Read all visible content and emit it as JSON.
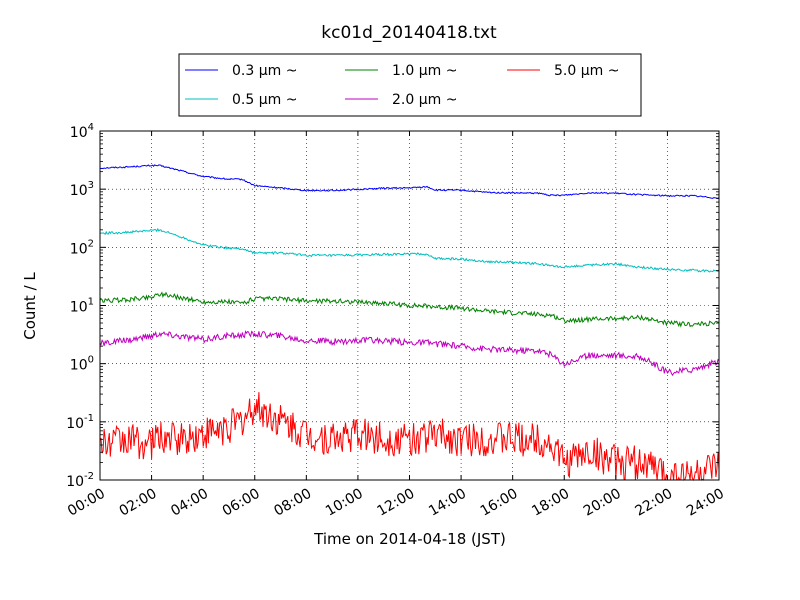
{
  "chart_data": {
    "type": "line",
    "title": "kc01d_20140418.txt",
    "xlabel": "Time on 2014-04-18 (JST)",
    "ylabel": "Count / L",
    "yscale": "log",
    "ylim": [
      0.01,
      10000
    ],
    "xlim": [
      0,
      24
    ],
    "grid": true,
    "legend_position": "top-center",
    "x_tick_labels": [
      "00:00",
      "02:00",
      "04:00",
      "06:00",
      "08:00",
      "10:00",
      "12:00",
      "14:00",
      "16:00",
      "18:00",
      "20:00",
      "22:00",
      "24:00"
    ],
    "y_ticks": [
      {
        "base": "10",
        "exp": "-2",
        "value": 0.01
      },
      {
        "base": "10",
        "exp": "-1",
        "value": 0.1
      },
      {
        "base": "10",
        "exp": "0",
        "value": 1
      },
      {
        "base": "10",
        "exp": "1",
        "value": 10
      },
      {
        "base": "10",
        "exp": "2",
        "value": 100
      },
      {
        "base": "10",
        "exp": "3",
        "value": 1000
      },
      {
        "base": "10",
        "exp": "4",
        "value": 10000
      }
    ],
    "x": [
      0,
      1,
      2,
      2.3,
      3,
      4,
      5,
      5.5,
      6,
      7,
      8,
      9,
      10,
      11,
      12,
      12.7,
      13,
      14,
      15,
      16,
      17,
      17.5,
      18,
      19,
      20,
      21,
      22,
      23,
      24
    ],
    "series": [
      {
        "name": "0.3 μm ~",
        "color": "#0000ff",
        "values": [
          2300,
          2400,
          2550,
          2550,
          2150,
          1650,
          1480,
          1480,
          1150,
          1050,
          950,
          950,
          990,
          1040,
          1050,
          1100,
          960,
          960,
          880,
          860,
          850,
          780,
          790,
          870,
          850,
          800,
          770,
          770,
          700
        ]
      },
      {
        "name": "0.5 μm ~",
        "color": "#00bfbf",
        "values": [
          175,
          180,
          195,
          200,
          160,
          110,
          97,
          95,
          80,
          80,
          73,
          72,
          74,
          75,
          77,
          76,
          64,
          63,
          57,
          55,
          52,
          48,
          46,
          50,
          52,
          45,
          42,
          40,
          39
        ]
      },
      {
        "name": "1.0 μm ~",
        "color": "#008000",
        "values": [
          12,
          12.5,
          14,
          16,
          14,
          11.5,
          11.5,
          11,
          13,
          13,
          12,
          12,
          11.5,
          11,
          10,
          9.8,
          9.5,
          9,
          8,
          7.5,
          7,
          6.8,
          5.5,
          5.8,
          6,
          6.2,
          5,
          4.7,
          5
        ]
      },
      {
        "name": "2.0 μm ~",
        "color": "#bf00bf",
        "values": [
          2.2,
          2.5,
          3,
          3.3,
          3,
          2.6,
          3,
          3.1,
          3.3,
          3,
          2.5,
          2.4,
          2.5,
          2.5,
          2.3,
          2.3,
          2.2,
          2,
          1.8,
          1.7,
          1.7,
          1.4,
          1.0,
          1.4,
          1.4,
          1.3,
          0.7,
          0.8,
          1.1
        ]
      },
      {
        "name": "5.0 μm ~",
        "color": "#ff0000",
        "values": [
          0.04,
          0.05,
          0.04,
          0.06,
          0.05,
          0.06,
          0.08,
          0.1,
          0.18,
          0.1,
          0.06,
          0.05,
          0.06,
          0.05,
          0.05,
          0.06,
          0.06,
          0.05,
          0.05,
          0.05,
          0.05,
          0.04,
          0.02,
          0.03,
          0.02,
          0.02,
          0.012,
          0.012,
          0.015
        ]
      }
    ]
  }
}
